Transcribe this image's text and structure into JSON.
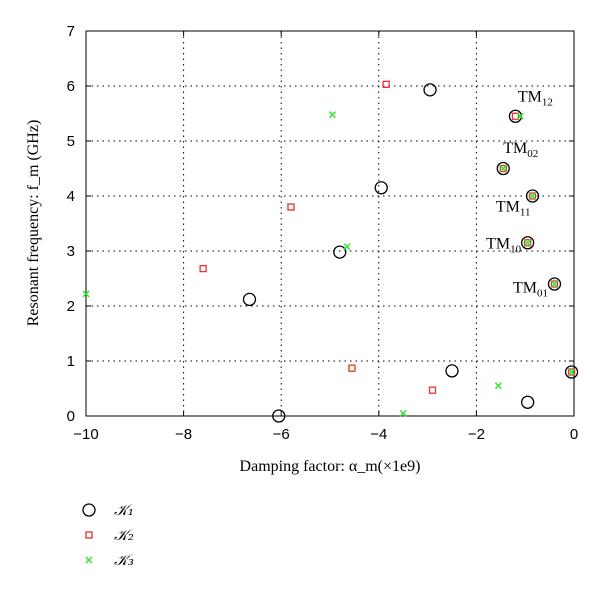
{
  "chart_data": {
    "type": "scatter",
    "title": "",
    "xlabel": "Damping factor: α_m(×1e9)",
    "ylabel": "Resonant frequency: f_m (GHz)",
    "xlim": [
      -10,
      0
    ],
    "ylim": [
      0,
      7
    ],
    "xticks": [
      "−10",
      "−8",
      "−6",
      "−4",
      "−2",
      "0"
    ],
    "yticks": [
      "0",
      "1",
      "2",
      "3",
      "4",
      "5",
      "6",
      "7"
    ],
    "grid": true,
    "legend_position": "below-left",
    "series": [
      {
        "name": "𝒦₁",
        "marker": "circle",
        "color": "#000000",
        "points": [
          [
            -6.05,
            0.0
          ],
          [
            -6.65,
            2.12
          ],
          [
            -4.8,
            2.98
          ],
          [
            -3.95,
            4.15
          ],
          [
            -2.95,
            5.93
          ],
          [
            -2.5,
            0.82
          ],
          [
            -0.95,
            0.25
          ],
          [
            -0.05,
            0.8
          ],
          [
            -0.4,
            2.4
          ],
          [
            -0.95,
            3.15
          ],
          [
            -0.85,
            4.0
          ],
          [
            -1.45,
            4.5
          ],
          [
            -1.2,
            5.45
          ]
        ]
      },
      {
        "name": "𝒦₂",
        "marker": "square",
        "color": "#e8312f",
        "points": [
          [
            -7.6,
            2.68
          ],
          [
            -5.8,
            3.8
          ],
          [
            -3.85,
            6.03
          ],
          [
            -4.55,
            0.87
          ],
          [
            -2.9,
            0.47
          ],
          [
            -0.05,
            0.8
          ],
          [
            -0.4,
            2.4
          ],
          [
            -0.95,
            3.15
          ],
          [
            -0.85,
            4.0
          ],
          [
            -1.45,
            4.5
          ],
          [
            -1.2,
            5.45
          ]
        ]
      },
      {
        "name": "𝒦₃",
        "marker": "x",
        "color": "#2ee82e",
        "points": [
          [
            -10.0,
            2.22
          ],
          [
            -4.95,
            5.48
          ],
          [
            -4.65,
            3.08
          ],
          [
            -3.5,
            0.05
          ],
          [
            -1.55,
            0.55
          ],
          [
            -0.05,
            0.8
          ],
          [
            -0.4,
            2.4
          ],
          [
            -0.95,
            3.15
          ],
          [
            -0.85,
            4.0
          ],
          [
            -1.45,
            4.5
          ],
          [
            -1.1,
            5.45
          ]
        ]
      }
    ],
    "annotations": [
      {
        "text": "TM",
        "sub": "12",
        "x": -1.15,
        "y": 5.72
      },
      {
        "text": "TM",
        "sub": "02",
        "x": -1.45,
        "y": 4.78
      },
      {
        "text": "TM",
        "sub": "11",
        "x": -1.6,
        "y": 3.72
      },
      {
        "text": "TM",
        "sub": "10",
        "x": -1.8,
        "y": 3.05
      },
      {
        "text": "TM",
        "sub": "01",
        "x": -1.25,
        "y": 2.25
      }
    ]
  }
}
